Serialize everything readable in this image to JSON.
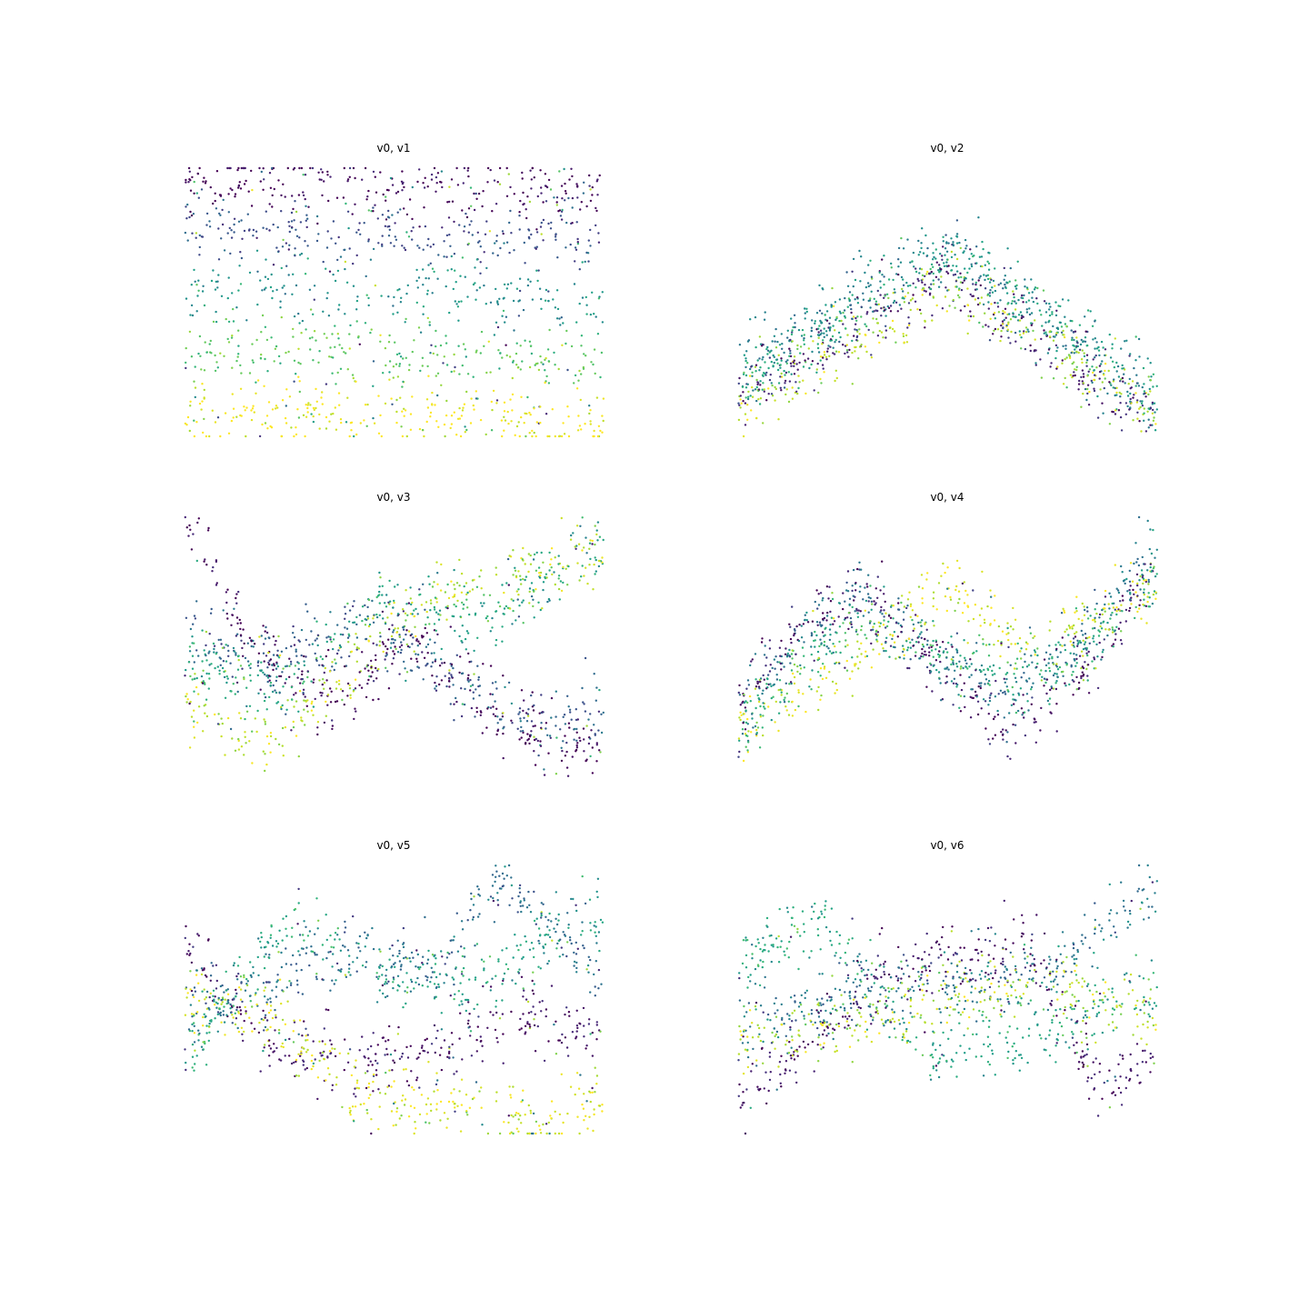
{
  "figure": {
    "background": "#ffffff"
  },
  "chart_data": [
    {
      "type": "scatter",
      "title": "v0, v1",
      "axes": "off",
      "grid": false,
      "xlim": [
        0,
        1
      ],
      "ylim": [
        0,
        1
      ],
      "colormap": "viridis",
      "point_count": 1300,
      "pattern": "horizontal color bands: dark purple high, yellow low; slightly tilted streaks",
      "curves": [
        {
          "x": [
            0.0,
            1.0
          ],
          "y": [
            0.96,
            0.9
          ],
          "color_value": 0.0
        },
        {
          "x": [
            0.0,
            1.0
          ],
          "y": [
            0.78,
            0.72
          ],
          "color_value": 0.25
        },
        {
          "x": [
            0.0,
            1.0
          ],
          "y": [
            0.55,
            0.5
          ],
          "color_value": 0.5
        },
        {
          "x": [
            0.0,
            1.0
          ],
          "y": [
            0.33,
            0.28
          ],
          "color_value": 0.75
        },
        {
          "x": [
            0.0,
            1.0
          ],
          "y": [
            0.1,
            0.06
          ],
          "color_value": 1.0
        }
      ]
    },
    {
      "type": "scatter",
      "title": "v0, v2",
      "axes": "off",
      "grid": false,
      "xlim": [
        0,
        1
      ],
      "ylim": [
        0,
        1
      ],
      "colormap": "viridis",
      "point_count": 1300,
      "pattern": "inverted-V peak near x=0.5; mixed colors",
      "curves": [
        {
          "x": [
            0.0,
            0.5,
            1.0
          ],
          "y": [
            0.15,
            0.6,
            0.05
          ],
          "color_value": 0.1
        },
        {
          "x": [
            0.0,
            0.5,
            1.0
          ],
          "y": [
            0.25,
            0.72,
            0.12
          ],
          "color_value": 0.45
        },
        {
          "x": [
            0.0,
            0.5,
            1.0
          ],
          "y": [
            0.2,
            0.68,
            0.18
          ],
          "color_value": 0.6
        },
        {
          "x": [
            0.0,
            0.5,
            1.0
          ],
          "y": [
            0.1,
            0.55,
            0.1
          ],
          "color_value": 0.9
        }
      ]
    },
    {
      "type": "scatter",
      "title": "v0, v3",
      "axes": "off",
      "grid": false,
      "xlim": [
        0,
        1
      ],
      "ylim": [
        0,
        1
      ],
      "colormap": "viridis",
      "point_count": 1300,
      "pattern": "wavy bands; purple descends from top-left, green/yellow rise to top-right",
      "curves": [
        {
          "x": [
            0.0,
            0.15,
            0.35,
            0.55,
            0.75,
            1.0
          ],
          "y": [
            0.98,
            0.55,
            0.3,
            0.55,
            0.25,
            0.1
          ],
          "color_value": 0.0
        },
        {
          "x": [
            0.0,
            0.2,
            0.45,
            0.65,
            0.85,
            1.0
          ],
          "y": [
            0.55,
            0.45,
            0.6,
            0.4,
            0.2,
            0.3
          ],
          "color_value": 0.3
        },
        {
          "x": [
            0.0,
            0.25,
            0.45,
            0.7,
            1.0
          ],
          "y": [
            0.48,
            0.35,
            0.72,
            0.6,
            0.9
          ],
          "color_value": 0.6
        },
        {
          "x": [
            0.0,
            0.2,
            0.4,
            0.6,
            0.8,
            1.0
          ],
          "y": [
            0.3,
            0.15,
            0.45,
            0.7,
            0.78,
            0.88
          ],
          "color_value": 0.9
        }
      ]
    },
    {
      "type": "scatter",
      "title": "v0, v4",
      "axes": "off",
      "grid": false,
      "xlim": [
        0,
        1
      ],
      "ylim": [
        0,
        1
      ],
      "colormap": "viridis",
      "point_count": 1300,
      "pattern": "sinusoidal wave: rise, peak near x=0.3, dip near x=0.65, rise to right",
      "curves": [
        {
          "x": [
            0.0,
            0.15,
            0.3,
            0.5,
            0.65,
            0.8,
            1.0
          ],
          "y": [
            0.3,
            0.6,
            0.72,
            0.4,
            0.2,
            0.4,
            0.8
          ],
          "color_value": 0.05
        },
        {
          "x": [
            0.0,
            0.15,
            0.3,
            0.5,
            0.65,
            0.8,
            1.0
          ],
          "y": [
            0.25,
            0.55,
            0.68,
            0.45,
            0.35,
            0.5,
            0.9
          ],
          "color_value": 0.4
        },
        {
          "x": [
            0.0,
            0.15,
            0.3,
            0.5,
            0.65,
            0.8,
            1.0
          ],
          "y": [
            0.2,
            0.45,
            0.62,
            0.5,
            0.4,
            0.45,
            0.78
          ],
          "color_value": 0.65
        },
        {
          "x": [
            0.0,
            0.2,
            0.35,
            0.5,
            0.7,
            1.0
          ],
          "y": [
            0.22,
            0.4,
            0.55,
            0.72,
            0.5,
            0.75
          ],
          "color_value": 0.95
        }
      ]
    },
    {
      "type": "scatter",
      "title": "v0, v5",
      "axes": "off",
      "grid": false,
      "xlim": [
        0,
        1
      ],
      "ylim": [
        0,
        1
      ],
      "colormap": "viridis",
      "point_count": 1300,
      "pattern": "irregular crossing bands; yellow dips low in the middle",
      "curves": [
        {
          "x": [
            0.0,
            0.2,
            0.4,
            0.6,
            0.8,
            1.0
          ],
          "y": [
            0.7,
            0.35,
            0.25,
            0.3,
            0.45,
            0.35
          ],
          "color_value": 0.05
        },
        {
          "x": [
            0.0,
            0.2,
            0.4,
            0.6,
            0.75,
            1.0
          ],
          "y": [
            0.45,
            0.55,
            0.7,
            0.6,
            0.95,
            0.6
          ],
          "color_value": 0.35
        },
        {
          "x": [
            0.0,
            0.25,
            0.45,
            0.7,
            1.0
          ],
          "y": [
            0.3,
            0.8,
            0.6,
            0.55,
            0.85
          ],
          "color_value": 0.6
        },
        {
          "x": [
            0.0,
            0.2,
            0.45,
            0.7,
            0.85,
            1.0
          ],
          "y": [
            0.5,
            0.45,
            0.1,
            0.12,
            0.02,
            0.15
          ],
          "color_value": 0.95
        }
      ]
    },
    {
      "type": "scatter",
      "title": "v0, v6",
      "axes": "off",
      "grid": false,
      "xlim": [
        0,
        1
      ],
      "ylim": [
        0,
        1
      ],
      "colormap": "viridis",
      "point_count": 1300,
      "pattern": "noisy mixed bands; purple rises from bottom-left, teal rises to top-right",
      "curves": [
        {
          "x": [
            0.0,
            0.3,
            0.5,
            0.7,
            0.85,
            1.0
          ],
          "y": [
            0.1,
            0.55,
            0.65,
            0.7,
            0.2,
            0.25
          ],
          "color_value": 0.05
        },
        {
          "x": [
            0.0,
            0.25,
            0.5,
            0.75,
            1.0
          ],
          "y": [
            0.4,
            0.5,
            0.55,
            0.6,
            0.95
          ],
          "color_value": 0.4
        },
        {
          "x": [
            0.0,
            0.2,
            0.45,
            0.7,
            1.0
          ],
          "y": [
            0.65,
            0.8,
            0.3,
            0.35,
            0.55
          ],
          "color_value": 0.6
        },
        {
          "x": [
            0.0,
            0.25,
            0.5,
            0.75,
            1.0
          ],
          "y": [
            0.35,
            0.4,
            0.5,
            0.55,
            0.45
          ],
          "color_value": 0.9
        }
      ]
    }
  ]
}
